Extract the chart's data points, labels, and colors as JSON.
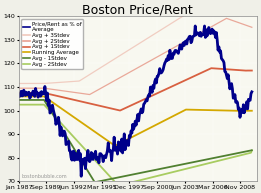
{
  "title": "Boston Price/Rent",
  "ylim": [
    70,
    140
  ],
  "xlim_start": 1987.0,
  "xlim_end": 2010.5,
  "xtick_labels": [
    "Jan 1987",
    "Sep 1989",
    "Jun 1992",
    "Mar 1995",
    "Dec 1997",
    "Sep 2000",
    "Jun 2003",
    "Mar 2006",
    "Nov 2008"
  ],
  "xtick_positions": [
    1987.0,
    1989.67,
    1992.42,
    1995.17,
    1997.92,
    2000.67,
    2003.42,
    2006.17,
    2008.83
  ],
  "ytick_labels": [
    "70",
    "80",
    "90",
    "100",
    "110",
    "120",
    "130",
    "140"
  ],
  "ytick_positions": [
    70,
    80,
    90,
    100,
    110,
    120,
    130,
    140
  ],
  "legend_entries": [
    "Price/Rent as % of\nAverage",
    "Avg + 3Stdev",
    "Avg + 2Stdev",
    "Avg + 1Stdev",
    "Running Average",
    "Avg - 1Stdev",
    "Avg - 2Stdev"
  ],
  "line_colors": [
    "#00008B",
    "#f0c8bc",
    "#e8a090",
    "#d86040",
    "#d4a800",
    "#508030",
    "#a8cc60"
  ],
  "line_widths": [
    2.0,
    0.9,
    0.9,
    1.3,
    1.3,
    1.3,
    1.3
  ],
  "background_color": "#f0f0e8",
  "plot_bg_color": "#f8f8f0",
  "title_fontsize": 9,
  "tick_fontsize": 4.5,
  "legend_fontsize": 4.0,
  "watermark": "bostonbubble.com"
}
